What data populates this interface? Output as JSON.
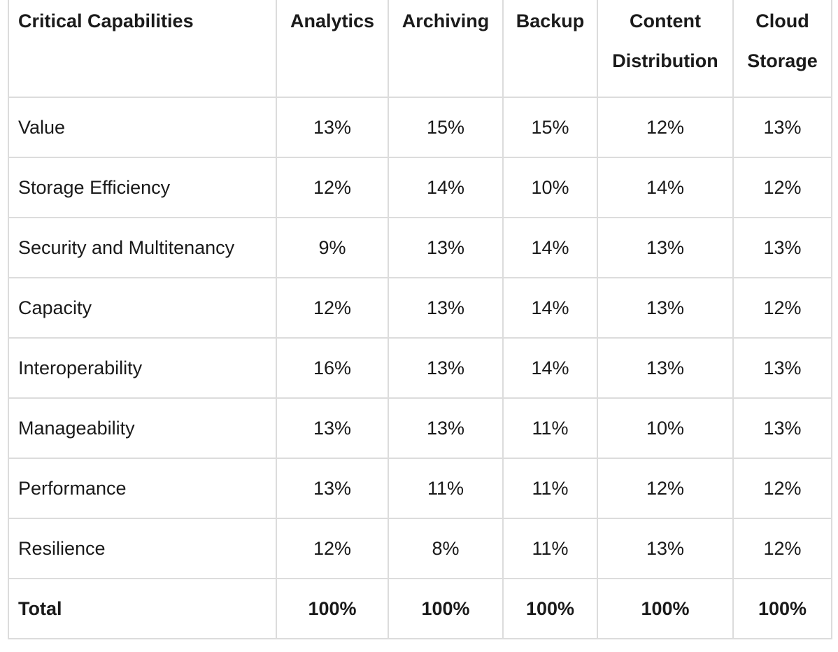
{
  "chart_data": {
    "type": "table",
    "columns": [
      "Critical Capabilities",
      "Analytics",
      "Archiving",
      "Backup",
      "Content Distribution",
      "Cloud Storage"
    ],
    "rows": [
      {
        "label": "Value",
        "values": [
          "13%",
          "15%",
          "15%",
          "12%",
          "13%"
        ]
      },
      {
        "label": "Storage Efficiency",
        "values": [
          "12%",
          "14%",
          "10%",
          "14%",
          "12%"
        ]
      },
      {
        "label": "Security and Multitenancy",
        "values": [
          "9%",
          "13%",
          "14%",
          "13%",
          "13%"
        ]
      },
      {
        "label": "Capacity",
        "values": [
          "12%",
          "13%",
          "14%",
          "13%",
          "12%"
        ]
      },
      {
        "label": "Interoperability",
        "values": [
          "16%",
          "13%",
          "14%",
          "13%",
          "13%"
        ]
      },
      {
        "label": "Manageability",
        "values": [
          "13%",
          "13%",
          "11%",
          "10%",
          "13%"
        ]
      },
      {
        "label": "Performance",
        "values": [
          "13%",
          "11%",
          "11%",
          "12%",
          "12%"
        ]
      },
      {
        "label": "Resilience",
        "values": [
          "12%",
          "8%",
          "11%",
          "13%",
          "12%"
        ]
      },
      {
        "label": "Total",
        "values": [
          "100%",
          "100%",
          "100%",
          "100%",
          "100%"
        ]
      }
    ],
    "grid": true,
    "colors": {
      "border": "#dcdcdc",
      "text": "#1a1a1a",
      "background": "#ffffff"
    }
  }
}
